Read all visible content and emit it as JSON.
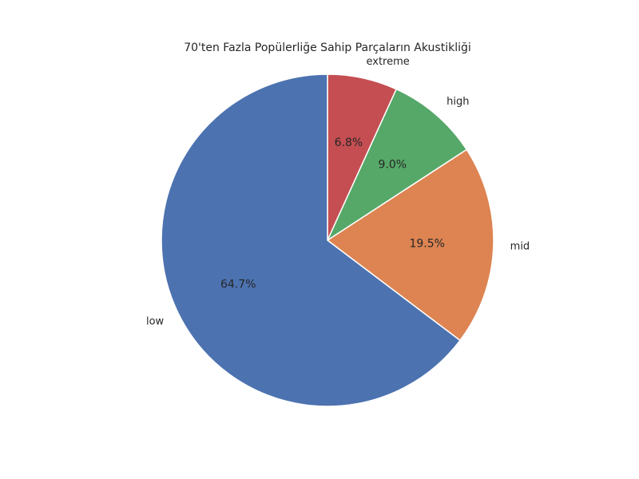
{
  "chart_data": {
    "type": "pie",
    "title": "70'ten Fazla Popülerliğe Sahip Parçaların Akustikliği",
    "start_angle_deg": 90,
    "direction": "clockwise",
    "slices": [
      {
        "label": "extreme",
        "value": 6.8,
        "pct_label": "6.8%",
        "color": "#c44e52"
      },
      {
        "label": "high",
        "value": 9.0,
        "pct_label": "9.0%",
        "color": "#55a868"
      },
      {
        "label": "mid",
        "value": 19.5,
        "pct_label": "19.5%",
        "color": "#dd8452"
      },
      {
        "label": "low",
        "value": 64.7,
        "pct_label": "64.7%",
        "color": "#4c72b0"
      }
    ]
  }
}
